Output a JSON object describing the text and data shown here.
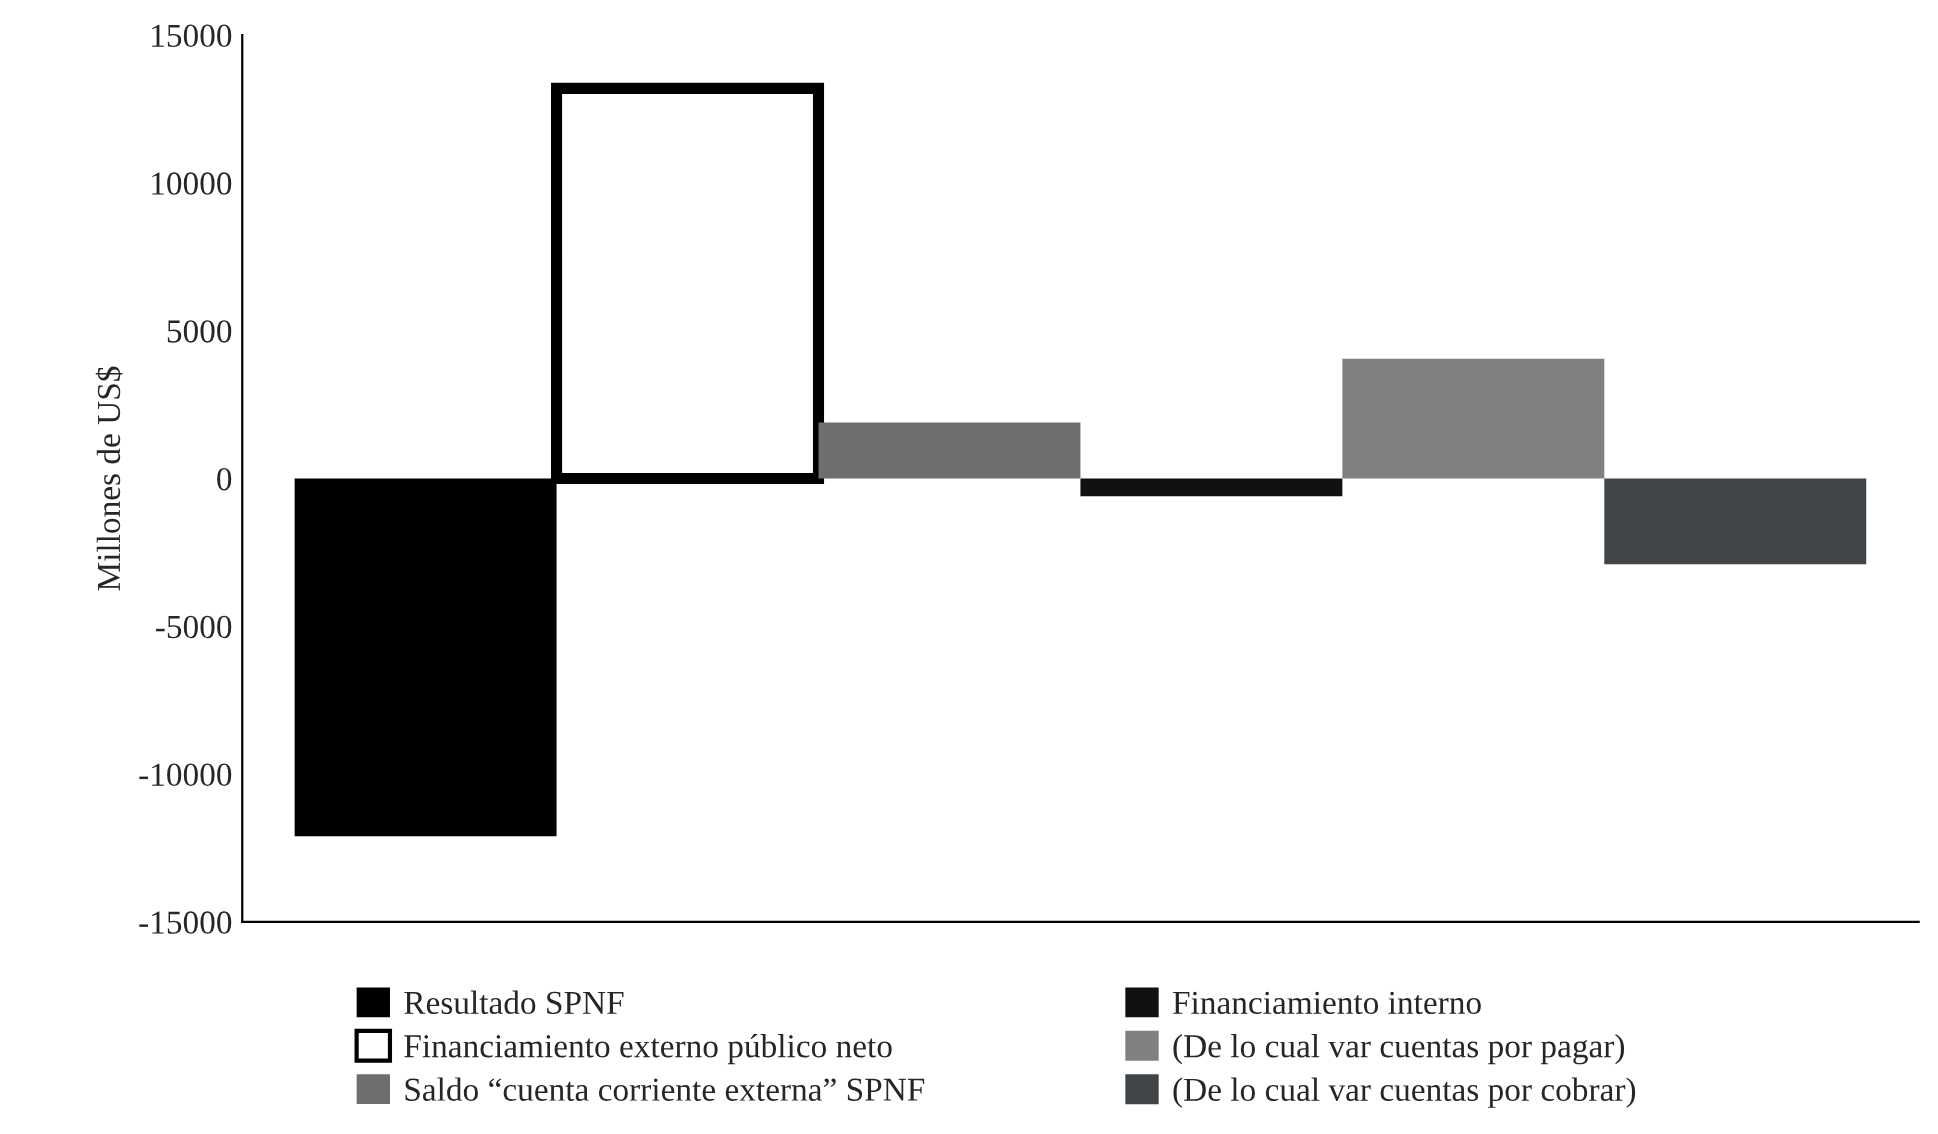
{
  "chart_data": {
    "type": "bar",
    "ylabel": "Millones de US$",
    "categories": [
      null,
      null,
      null,
      null,
      null,
      null
    ],
    "series": [
      {
        "name": "Resultado SPNF",
        "color": "#000000",
        "values": [
          -12100,
          null,
          null,
          null,
          null,
          null
        ]
      },
      {
        "name": "Financiamiento externo público neto",
        "color": "#ffffff",
        "values": [
          null,
          13200,
          null,
          null,
          null,
          null
        ]
      },
      {
        "name": "Saldo “cuenta corriente externa” SPNF",
        "color": "#6e6e6e",
        "values": [
          null,
          null,
          1900,
          null,
          null,
          null
        ]
      },
      {
        "name": "Financiamiento interno",
        "color": "#111111",
        "values": [
          null,
          null,
          null,
          -600,
          null,
          null
        ]
      },
      {
        "name": "(De lo cual var cuentas por pagar)",
        "color": "#7f8080",
        "values": [
          null,
          null,
          null,
          null,
          4050,
          null
        ]
      },
      {
        "name": "(De lo cual var cuentas por cobrar)",
        "color": "#414547",
        "values": [
          null,
          null,
          null,
          null,
          null,
          -2900
        ]
      }
    ],
    "ylim": [
      -15000,
      15000
    ],
    "yticks": [
      -15000,
      -10000,
      -5000,
      0,
      5000,
      10000,
      15000
    ],
    "grid": false,
    "legend": "bottom"
  }
}
